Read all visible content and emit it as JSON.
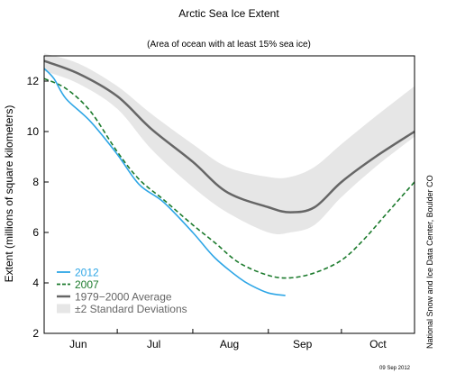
{
  "chart_data": {
    "type": "line",
    "title": "Arctic Sea Ice Extent",
    "subtitle": "(Area of ocean with at least 15% sea ice)",
    "ylabel": "Extent (millions of square kilometers)",
    "xlabel": "",
    "ylim": [
      2,
      13
    ],
    "yticks": [
      2,
      4,
      6,
      8,
      10,
      12
    ],
    "xlim": [
      "Jun 1",
      "Oct 31"
    ],
    "months": [
      {
        "label": "Jun",
        "start": "Jun 1",
        "center": "Jun 15"
      },
      {
        "label": "Jul",
        "start": "Jul 1",
        "center": "Jul 16"
      },
      {
        "label": "Aug",
        "start": "Aug 1",
        "center": "Aug 16"
      },
      {
        "label": "Sep",
        "start": "Sep 1",
        "center": "Sep 15"
      },
      {
        "label": "Oct",
        "start": "Oct 1",
        "center": "Oct 16"
      }
    ],
    "grid": false,
    "legend_position": "bottom-left",
    "band": {
      "name": "±2 Standard Deviations",
      "color": "#e6e6e6",
      "x": [
        "Jun 1",
        "Jun 15",
        "Jul 1",
        "Jul 15",
        "Aug 1",
        "Aug 15",
        "Sep 1",
        "Sep 10",
        "Sep 20",
        "Oct 1",
        "Oct 15",
        "Oct 31"
      ],
      "upper": [
        13.1,
        12.7,
        11.8,
        10.7,
        9.5,
        8.6,
        8.2,
        8.2,
        8.6,
        9.5,
        10.6,
        11.8
      ],
      "lower": [
        12.4,
        11.9,
        10.9,
        9.3,
        7.8,
        6.8,
        6.0,
        6.0,
        6.3,
        7.4,
        8.6,
        9.8
      ]
    },
    "series": [
      {
        "name": "1979−2000 Average",
        "color": "#666666",
        "style": "solid",
        "x": [
          "Jun 1",
          "Jun 15",
          "Jul 1",
          "Jul 15",
          "Aug 1",
          "Aug 15",
          "Sep 1",
          "Sep 10",
          "Sep 20",
          "Oct 1",
          "Oct 15",
          "Oct 31"
        ],
        "values": [
          12.8,
          12.3,
          11.4,
          10.1,
          8.8,
          7.6,
          7.0,
          6.8,
          7.0,
          8.0,
          9.0,
          10.0
        ]
      },
      {
        "name": "2007",
        "color": "#1b7a2c",
        "style": "dashed",
        "x": [
          "Jun 1",
          "Jun 10",
          "Jun 20",
          "Jul 1",
          "Jul 10",
          "Jul 20",
          "Aug 1",
          "Aug 10",
          "Aug 20",
          "Sep 1",
          "Sep 10",
          "Sep 20",
          "Oct 1",
          "Oct 10",
          "Oct 20",
          "Oct 31"
        ],
        "values": [
          12.1,
          11.7,
          10.8,
          9.2,
          8.1,
          7.3,
          6.3,
          5.6,
          4.8,
          4.3,
          4.2,
          4.4,
          4.9,
          5.7,
          6.8,
          8.0
        ]
      },
      {
        "name": "2012",
        "color": "#2ea6e6",
        "style": "solid",
        "x": [
          "Jun 1",
          "Jun 5",
          "Jun 10",
          "Jun 20",
          "Jul 1",
          "Jul 10",
          "Jul 20",
          "Aug 1",
          "Aug 10",
          "Aug 20",
          "Aug 25",
          "Sep 1",
          "Sep 8"
        ],
        "values": [
          12.5,
          12.1,
          11.3,
          10.4,
          9.1,
          7.9,
          7.2,
          6.0,
          5.0,
          4.2,
          3.9,
          3.6,
          3.5
        ]
      }
    ],
    "credit": "National Snow and Ice Data Center, Boulder CO",
    "date_stamp": "09 Sep 2012"
  }
}
